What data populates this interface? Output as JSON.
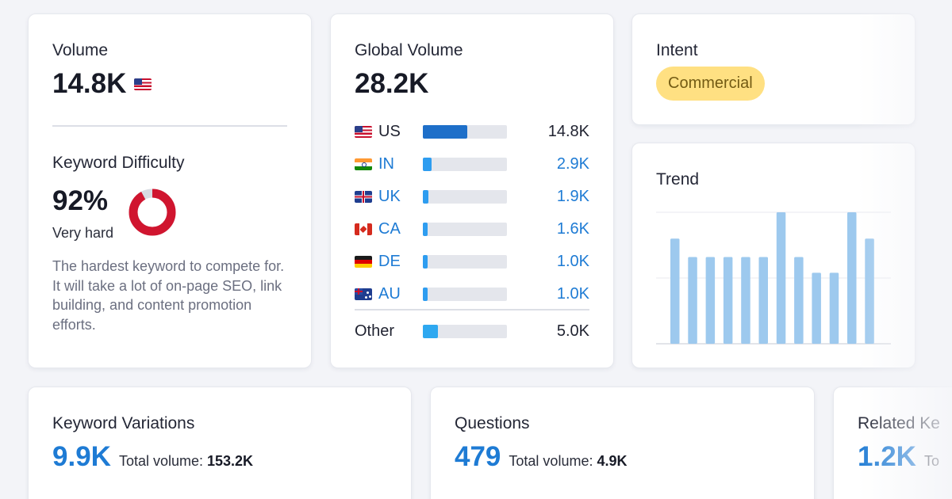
{
  "volume": {
    "label": "Volume",
    "value": "14.8K",
    "flag_icon": "us-flag-icon"
  },
  "keyword_difficulty": {
    "label": "Keyword Difficulty",
    "value": "92%",
    "percent": 92,
    "level": "Very hard",
    "description": "The hardest keyword to compete for. It will take a lot of on-page SEO, link building, and content promotion efforts.",
    "color": "#d0152f"
  },
  "global_volume": {
    "label": "Global Volume",
    "value": "28.2K",
    "rows": [
      {
        "code": "US",
        "flag_icon": "us-flag-icon",
        "value": "14.8K",
        "fraction": 0.525,
        "color": "#1e6fc9"
      },
      {
        "code": "IN",
        "flag_icon": "in-flag-icon",
        "value": "2.9K",
        "fraction": 0.103,
        "color": "#2e9df0"
      },
      {
        "code": "UK",
        "flag_icon": "uk-flag-icon",
        "value": "1.9K",
        "fraction": 0.067,
        "color": "#2e9df0"
      },
      {
        "code": "CA",
        "flag_icon": "ca-flag-icon",
        "value": "1.6K",
        "fraction": 0.057,
        "color": "#2e9df0"
      },
      {
        "code": "DE",
        "flag_icon": "de-flag-icon",
        "value": "1.0K",
        "fraction": 0.035,
        "color": "#2e9df0"
      },
      {
        "code": "AU",
        "flag_icon": "au-flag-icon",
        "value": "1.0K",
        "fraction": 0.035,
        "color": "#2e9df0"
      }
    ],
    "other": {
      "label": "Other",
      "value": "5.0K",
      "fraction": 0.177,
      "color": "#2ea8f0"
    }
  },
  "intent": {
    "label": "Intent",
    "value": "Commercial"
  },
  "trend": {
    "label": "Trend",
    "values": [
      0.8,
      0.66,
      0.66,
      0.66,
      0.66,
      0.66,
      1.0,
      0.66,
      0.54,
      0.54,
      1.0,
      0.8
    ],
    "bar_color": "#9dc9ee"
  },
  "keyword_variations": {
    "label": "Keyword Variations",
    "value": "9.9K",
    "total_label": "Total volume:",
    "total_value": "153.2K"
  },
  "questions": {
    "label": "Questions",
    "value": "479",
    "total_label": "Total volume:",
    "total_value": "4.9K"
  },
  "related": {
    "label": "Related Ke",
    "value": "1.2K",
    "total_label": "To"
  }
}
